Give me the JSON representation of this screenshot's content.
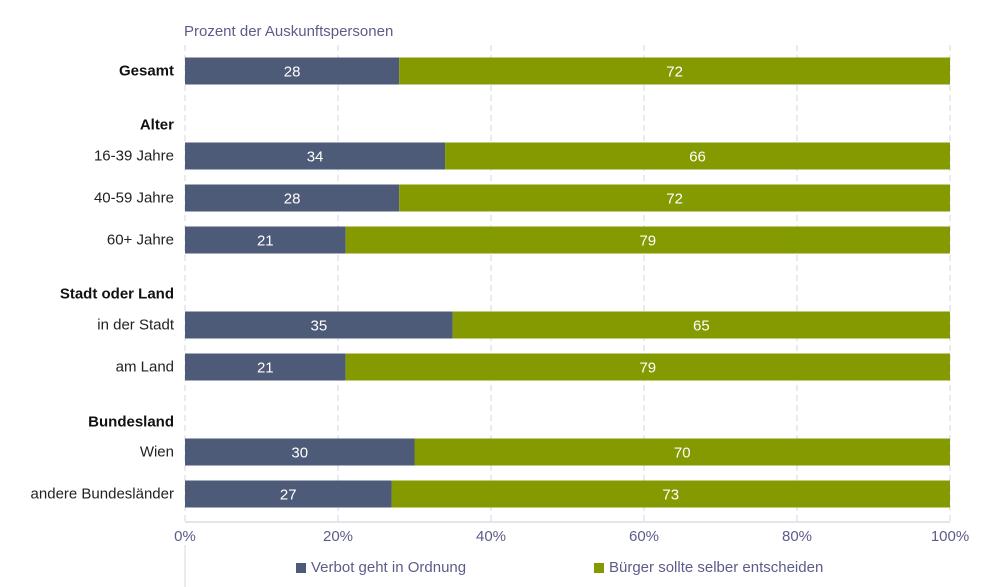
{
  "chart_data": {
    "type": "bar",
    "orientation": "horizontal",
    "stacked": true,
    "subtitle": "Prozent der Auskunftspersonen",
    "rows": [
      {
        "label": "Gesamt",
        "bold": true,
        "values": [
          28,
          72
        ]
      },
      {
        "label": "Alter",
        "bold": true,
        "header": true
      },
      {
        "label": "16-39 Jahre",
        "bold": false,
        "values": [
          34,
          66
        ]
      },
      {
        "label": "40-59 Jahre",
        "bold": false,
        "values": [
          28,
          72
        ]
      },
      {
        "label": "60+ Jahre",
        "bold": false,
        "values": [
          21,
          79
        ]
      },
      {
        "label": "Stadt oder Land",
        "bold": true,
        "header": true
      },
      {
        "label": "in der Stadt",
        "bold": false,
        "values": [
          35,
          65
        ]
      },
      {
        "label": "am Land",
        "bold": false,
        "values": [
          21,
          79
        ]
      },
      {
        "label": "Bundesland",
        "bold": true,
        "header": true
      },
      {
        "label": "Wien",
        "bold": false,
        "values": [
          30,
          70
        ]
      },
      {
        "label": "andere Bundesländer",
        "bold": false,
        "values": [
          27,
          73
        ]
      }
    ],
    "series": [
      {
        "name": "Verbot geht in Ordnung",
        "color": "#4d5a78"
      },
      {
        "name": "Bürger sollte selber entscheiden",
        "color": "#849a00"
      }
    ],
    "xlim": [
      0,
      100
    ],
    "xticks": [
      "0%",
      "20%",
      "40%",
      "60%",
      "80%",
      "100%"
    ],
    "grid": true,
    "legend_position": "bottom"
  }
}
